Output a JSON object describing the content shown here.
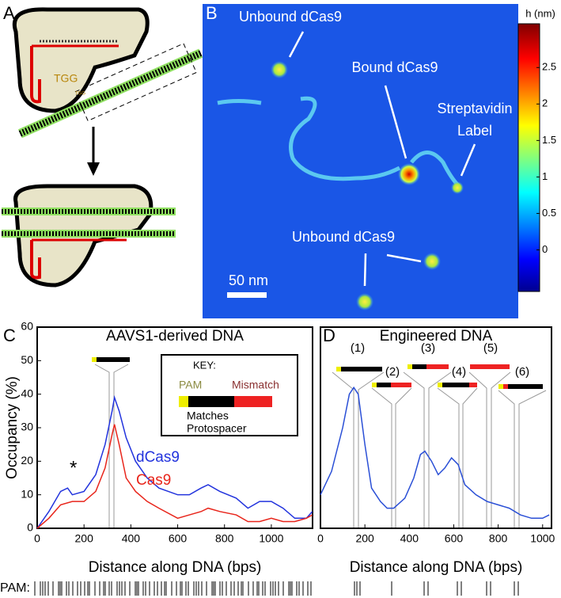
{
  "panels": {
    "a": {
      "letter": "A",
      "pam": "TGG",
      "pam_small": "TGG"
    },
    "b": {
      "letter": "B",
      "unbound_top": "Unbound dCas9",
      "bound": "Bound dCas9",
      "strep_1": "Streptavidin",
      "strep_2": "Label",
      "unbound_bottom": "Unbound dCas9",
      "scale": "50 nm"
    },
    "c": {
      "letter": "C",
      "star": "*",
      "key": "KEY:",
      "key_pam": "PAM",
      "key_mismatch": "Mismatch",
      "key_matches": "Matches",
      "key_protospacer": "Protospacer",
      "pam_row": "PAM:"
    },
    "d": {
      "letter": "D",
      "sites": [
        "(1)",
        "(2)",
        "(3)",
        "(4)",
        "(5)",
        "(6)"
      ]
    }
  },
  "chart_data": [
    {
      "type": "line",
      "title": "AAVS1-derived DNA",
      "x_label": "Distance along DNA (bps)",
      "y_label": "Occupancy (%)",
      "xlim": [
        0,
        1176
      ],
      "xticks": [
        0,
        200,
        400,
        600,
        800,
        1000
      ],
      "ylim": [
        0,
        60
      ],
      "yticks": [
        0,
        10,
        20,
        30,
        40,
        50,
        60
      ],
      "series": [
        {
          "name": "dCas9",
          "color": "#2233dd",
          "x": [
            0,
            50,
            100,
            130,
            150,
            200,
            250,
            290,
            320,
            330,
            350,
            380,
            420,
            470,
            520,
            600,
            650,
            700,
            730,
            780,
            850,
            900,
            950,
            1000,
            1050,
            1100,
            1150,
            1175
          ],
          "values": [
            0,
            5,
            11,
            12,
            10,
            11,
            16,
            25,
            35,
            39,
            35,
            27,
            20,
            15,
            12,
            10,
            10,
            12,
            13,
            11,
            9,
            6,
            8,
            8,
            6,
            3,
            3,
            5
          ]
        },
        {
          "name": "Cas9",
          "color": "#e8251b",
          "x": [
            0,
            50,
            100,
            150,
            200,
            250,
            290,
            320,
            330,
            350,
            380,
            420,
            470,
            520,
            600,
            650,
            700,
            730,
            780,
            850,
            900,
            950,
            1000,
            1050,
            1100,
            1150,
            1175
          ],
          "values": [
            0,
            3,
            7,
            8,
            8,
            11,
            18,
            28,
            31,
            25,
            15,
            11,
            8,
            6,
            3,
            4,
            5,
            6,
            5,
            4,
            2,
            2,
            3,
            2,
            2,
            3,
            4
          ]
        }
      ]
    },
    {
      "type": "line",
      "title": "Engineered DNA",
      "x_label": "Distance along DNA (bps)",
      "xlim": [
        0,
        1040
      ],
      "xticks": [
        0,
        200,
        400,
        600,
        800,
        1000
      ],
      "ylim": [
        0,
        60
      ],
      "series": [
        {
          "color": "#2a4fd6",
          "x": [
            0,
            50,
            100,
            130,
            150,
            170,
            200,
            230,
            270,
            300,
            330,
            380,
            420,
            450,
            470,
            500,
            530,
            560,
            590,
            620,
            650,
            700,
            750,
            800,
            850,
            900,
            950,
            1000,
            1030
          ],
          "values": [
            10,
            17,
            30,
            40,
            42,
            40,
            25,
            12,
            8,
            6,
            6,
            9,
            15,
            22,
            23,
            20,
            16,
            18,
            21,
            19,
            13,
            10,
            8,
            7,
            6,
            4,
            3,
            3,
            4
          ]
        }
      ]
    },
    {
      "type": "colorbar",
      "title": "h (nm)",
      "ylim": [
        -0.57,
        3.1
      ],
      "yticks": [
        0,
        0.5,
        1,
        1.5,
        2,
        2.5
      ]
    }
  ]
}
